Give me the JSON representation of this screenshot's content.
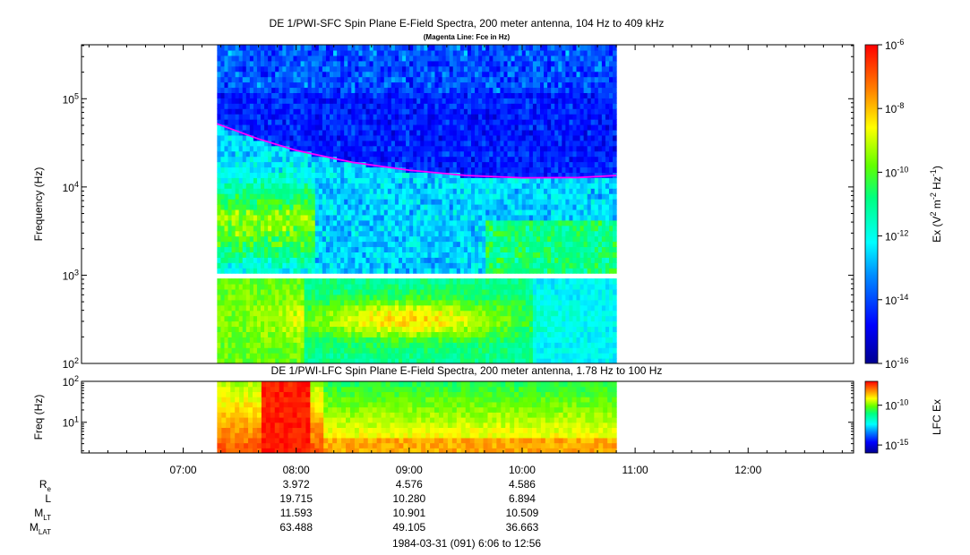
{
  "chart_data": [
    {
      "type": "heatmap",
      "title": "DE 1/PWI-SFC  Spin Plane E-Field Spectra, 200 meter antenna, 104 Hz to 409 kHz",
      "subtitle": "(Magenta Line: Fce in Hz)",
      "ylabel": "Frequency (Hz)",
      "ylim": [
        100,
        409000
      ],
      "y_scale": "log",
      "y_ticks": [
        {
          "label": "10",
          "sup": "2",
          "value": 100
        },
        {
          "label": "10",
          "sup": "3",
          "value": 1000
        },
        {
          "label": "10",
          "sup": "4",
          "value": 10000
        },
        {
          "label": "10",
          "sup": "5",
          "value": 100000
        }
      ],
      "data_window": {
        "start": "07:18",
        "end": "10:50"
      },
      "gap_band_hz": [
        900,
        1050
      ],
      "colorbar": {
        "label": "Ex (V",
        "label_sup1": "2",
        "label_mid": " m",
        "label_sup2": "-2",
        "label_mid2": " Hz",
        "label_sup3": "-1",
        "label_end": ")",
        "range_log10": [
          -16,
          -6
        ],
        "ticks": [
          {
            "label": "10",
            "sup": "-6",
            "value": -6
          },
          {
            "label": "10",
            "sup": "-8",
            "value": -8
          },
          {
            "label": "10",
            "sup": "-10",
            "value": -10
          },
          {
            "label": "10",
            "sup": "-12",
            "value": -12
          },
          {
            "label": "10",
            "sup": "-14",
            "value": -14
          },
          {
            "label": "10",
            "sup": "-16",
            "value": -16
          }
        ]
      },
      "fce_line": {
        "color": "#ff00ff",
        "x": [
          "07:18",
          "07:40",
          "08:00",
          "08:30",
          "09:00",
          "09:30",
          "10:00",
          "10:30",
          "10:50"
        ],
        "y": [
          52000,
          35000,
          26000,
          19000,
          15500,
          13500,
          12700,
          12800,
          13500
        ]
      }
    },
    {
      "type": "heatmap",
      "title": "DE 1/PWI-LFC  Spin Plane E-Field Spectra, 200 meter antenna, 1.78 Hz to 100 Hz",
      "ylabel": "Freq (Hz)",
      "ylim": [
        1.78,
        100
      ],
      "y_scale": "log",
      "y_ticks": [
        {
          "label": "10",
          "sup": "1",
          "value": 10
        },
        {
          "label": "10",
          "sup": "2",
          "value": 100
        }
      ],
      "data_window": {
        "start": "07:18",
        "end": "10:50"
      },
      "colorbar": {
        "label": "LFC Ex",
        "range_log10": [
          -16,
          -7
        ],
        "ticks": [
          {
            "label": "10",
            "sup": "-10",
            "value": -10
          },
          {
            "label": "10",
            "sup": "-15",
            "value": -15
          }
        ]
      }
    }
  ],
  "x_axis": {
    "range": [
      "06:06",
      "12:56"
    ],
    "ticks": [
      "07:00",
      "08:00",
      "09:00",
      "10:00",
      "11:00",
      "12:00"
    ]
  },
  "ephemeris": {
    "rows": [
      {
        "label": "R",
        "sub": "e",
        "values": [
          "3.972",
          "4.576",
          "4.586"
        ]
      },
      {
        "label": "L",
        "sub": "",
        "values": [
          "19.715",
          "10.280",
          "6.894"
        ]
      },
      {
        "label": "M",
        "sub": "LT",
        "values": [
          "11.593",
          "10.901",
          "10.509"
        ]
      },
      {
        "label": "M",
        "sub": "LAT",
        "values": [
          "63.488",
          "49.105",
          "36.663"
        ]
      }
    ],
    "at": [
      "08:00",
      "09:00",
      "10:00"
    ]
  },
  "footer": "1984-03-31 (091) 6:06 to 12:56"
}
